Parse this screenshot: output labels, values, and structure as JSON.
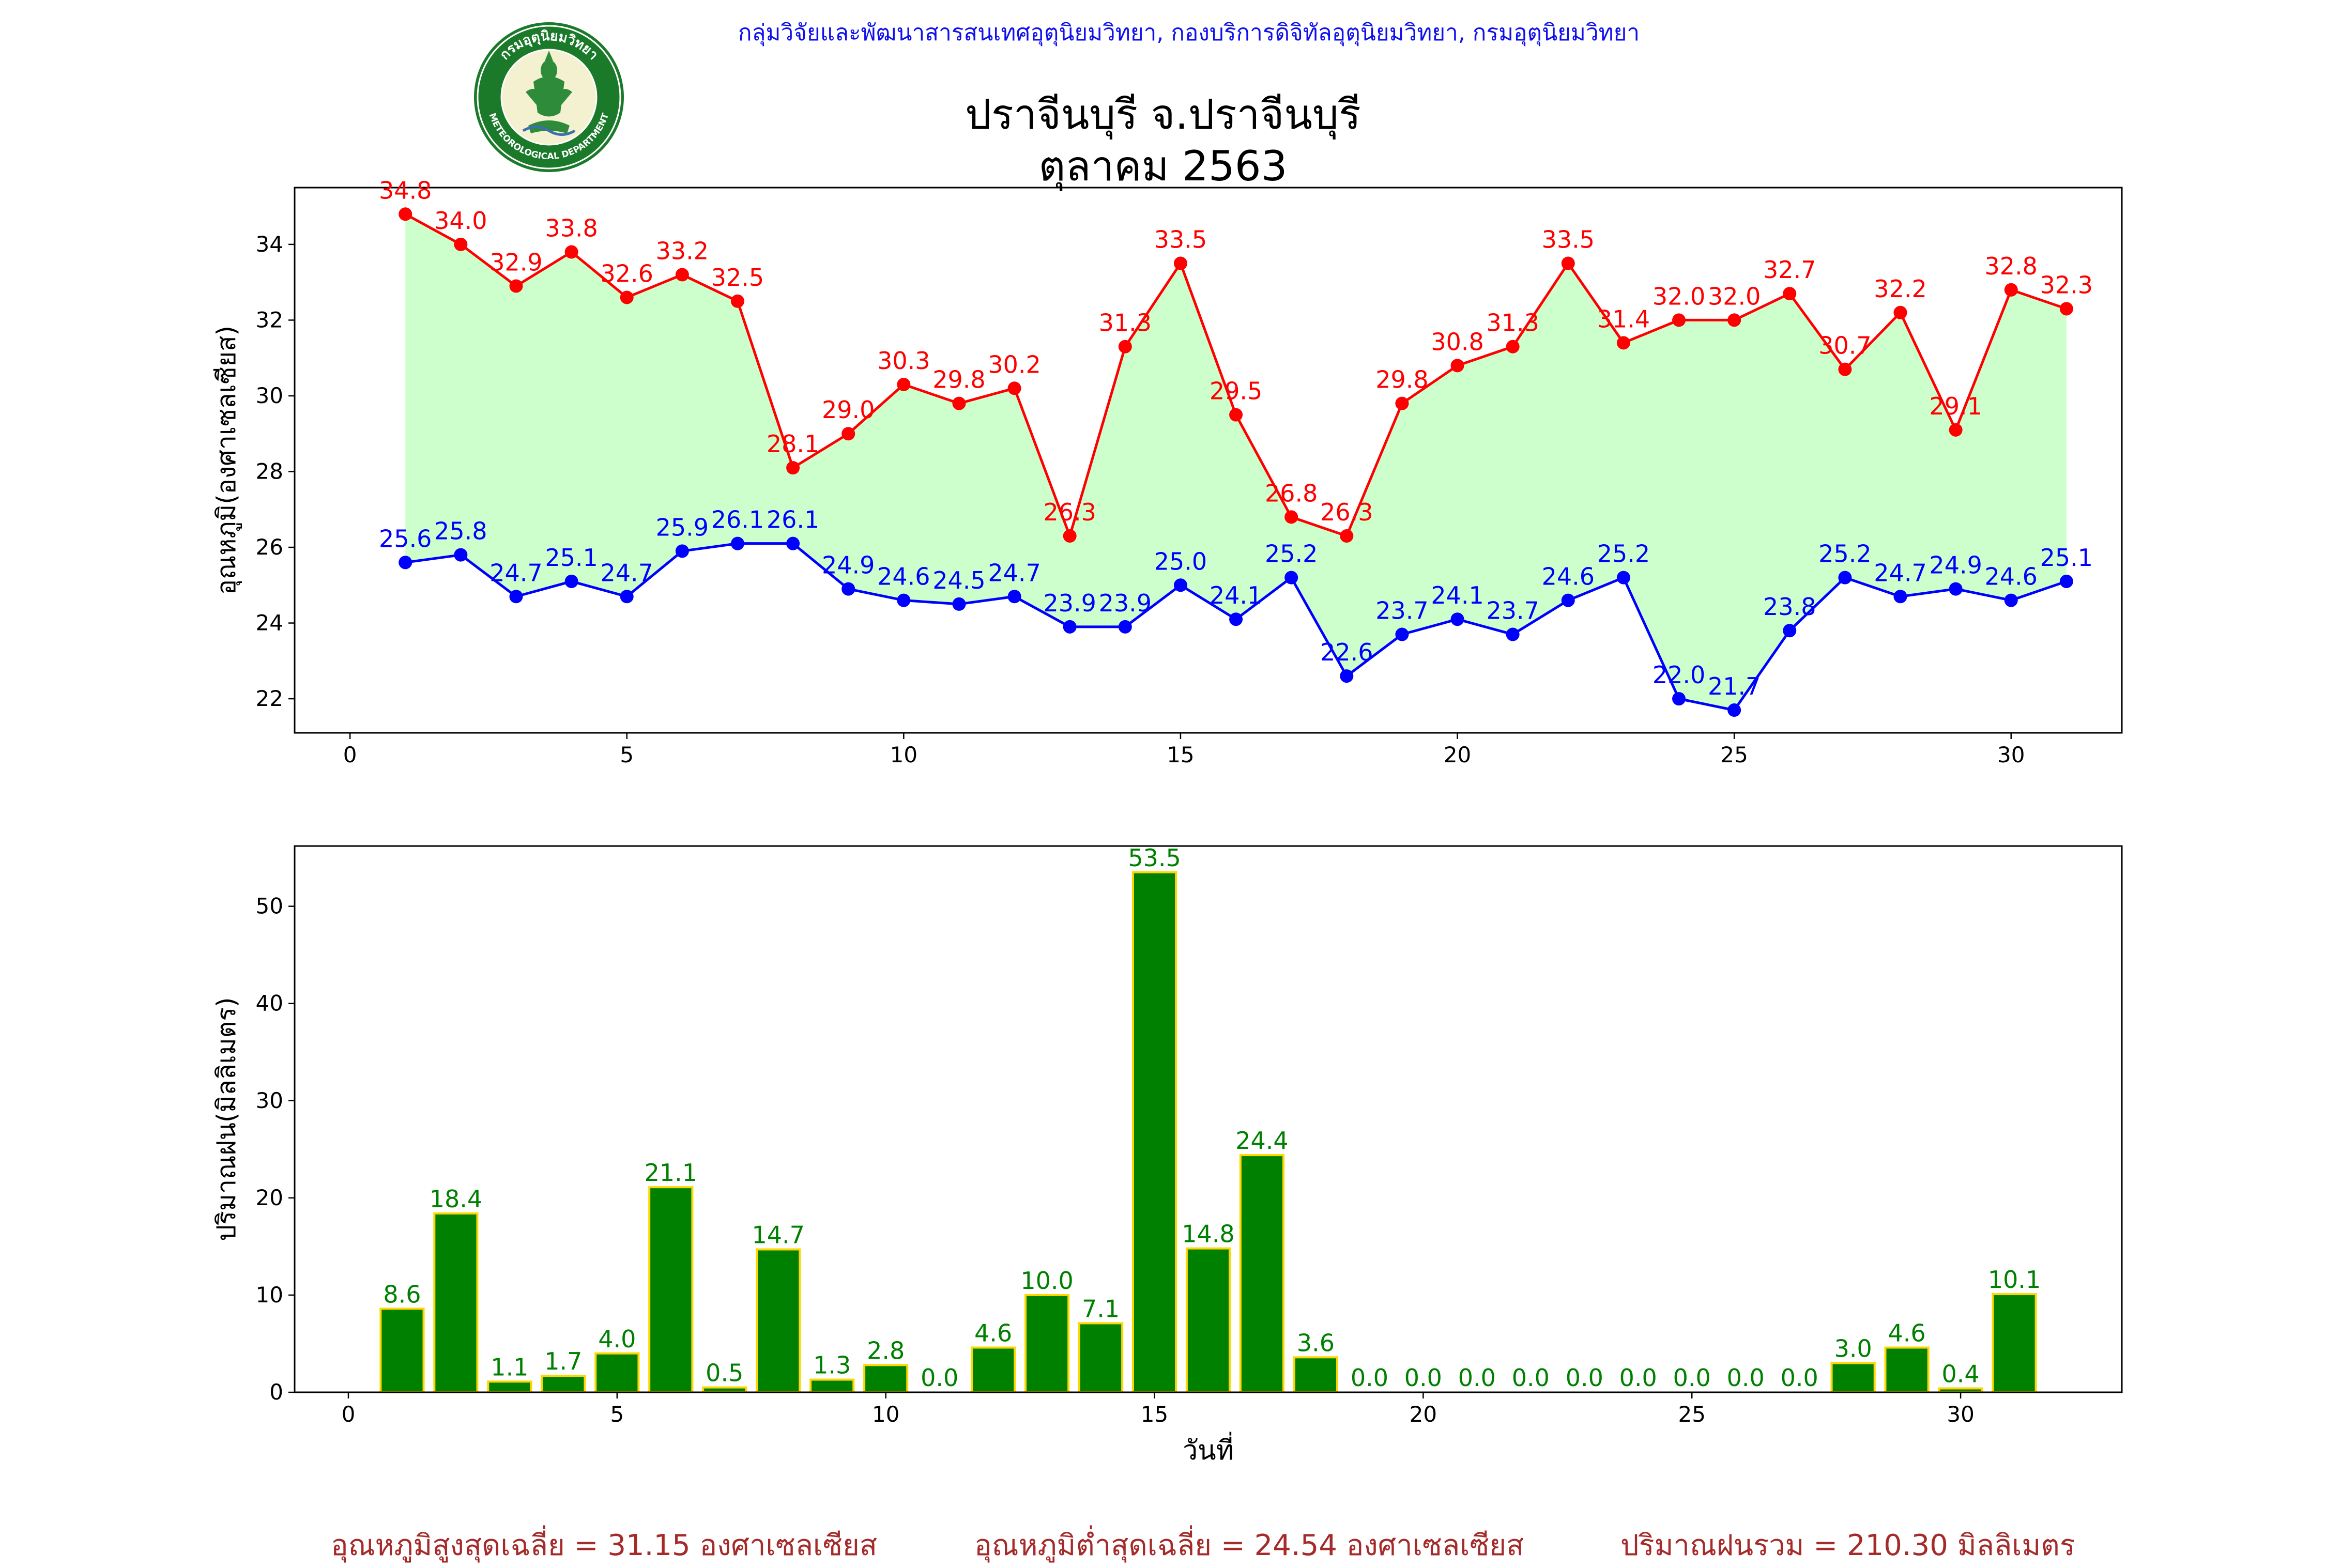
{
  "header": {
    "organization": "กลุ่มวิจัยและพัฒนาสารสนเทศอุตุนิยมวิทยา, กองบริการดิจิทัลอุตุนิยมวิทยา, กรมอุตุนิยมวิทยา",
    "station_title": "ปราจีนบุรี จ.ปราจีนบุรี",
    "month_title": "ตุลาคม 2563"
  },
  "logo": {
    "text_top": "กรมอุตุนิยมวิทยา",
    "text_bottom": "METEOROLOGICAL DEPARTMENT",
    "colors": {
      "ring": "#1a7a2a",
      "inner": "#f4f1d0",
      "figure": "#2e8b3a"
    }
  },
  "footer": {
    "avg_max": "อุณหภูมิสูงสุดเฉลี่ย = 31.15 องศาเซลเซียส",
    "avg_min": "อุณหภูมิต่ำสุดเฉลี่ย = 24.54 องศาเซลเซียส",
    "rain_total": "ปริมาณฝนรวม = 210.30 มิลลิเมตร"
  },
  "chart_data": [
    {
      "type": "line",
      "ylabel": "อุณหภูมิ(องศาเซลเซียส)",
      "xlabel": "",
      "xlim": [
        -1,
        32
      ],
      "ylim": [
        21.1,
        35.5
      ],
      "x_ticks": [
        0,
        5,
        10,
        15,
        20,
        25,
        30
      ],
      "y_ticks": [
        22,
        24,
        26,
        28,
        30,
        32,
        34
      ],
      "fill_between": {
        "color": "#ccffcc"
      },
      "x": [
        1,
        2,
        3,
        4,
        5,
        6,
        7,
        8,
        9,
        10,
        11,
        12,
        13,
        14,
        15,
        16,
        17,
        18,
        19,
        20,
        21,
        22,
        23,
        24,
        25,
        26,
        27,
        28,
        29,
        30,
        31
      ],
      "series": [
        {
          "color": "#ff0000",
          "values": [
            34.8,
            34.0,
            32.9,
            33.8,
            32.6,
            33.2,
            32.5,
            28.1,
            29.0,
            30.3,
            29.8,
            30.2,
            26.3,
            31.3,
            33.5,
            29.5,
            26.8,
            26.3,
            29.8,
            30.8,
            31.3,
            33.5,
            31.4,
            32.0,
            32.0,
            32.7,
            30.7,
            32.2,
            29.1,
            32.8,
            32.3
          ],
          "labels": [
            "34.8",
            "34.0",
            "32.9",
            "33.8",
            "32.6",
            "33.2",
            "32.5",
            "28.1",
            "29.0",
            "30.3",
            "29.8",
            "30.2",
            "26.3",
            "31.3",
            "33.5",
            "29.5",
            "26.8",
            "26.3",
            "29.8",
            "30.8",
            "31.3",
            "33.5",
            "31.4",
            "32.0",
            "32.0",
            "32.7",
            "30.7",
            "32.2",
            "29.1",
            "32.8",
            "32.3"
          ]
        },
        {
          "color": "#0000ff",
          "values": [
            25.6,
            25.8,
            24.7,
            25.1,
            24.7,
            25.9,
            26.1,
            26.1,
            24.9,
            24.6,
            24.5,
            24.7,
            23.9,
            23.9,
            25.0,
            24.1,
            25.2,
            22.6,
            23.7,
            24.1,
            23.7,
            24.6,
            25.2,
            22.0,
            21.7,
            23.8,
            25.2,
            24.7,
            24.9,
            24.6,
            25.1
          ],
          "labels": [
            "25.6",
            "25.8",
            "24.7",
            "25.1",
            "24.7",
            "25.9",
            "26.1",
            "26.1",
            "24.9",
            "24.6",
            "24.5",
            "24.7",
            "23.9",
            "23.9",
            "25.0",
            "24.1",
            "25.2",
            "22.6",
            "23.7",
            "24.1",
            "23.7",
            "24.6",
            "25.2",
            "22.0",
            "21.7",
            "23.8",
            "25.2",
            "24.7",
            "24.9",
            "24.6",
            "25.1"
          ]
        }
      ]
    },
    {
      "type": "bar",
      "ylabel": "ปริมาณฝน(มิลลิเมตร)",
      "xlabel": "วันที่",
      "xlim": [
        -1,
        33
      ],
      "ylim": [
        0,
        56.2
      ],
      "x_ticks": [
        0,
        5,
        10,
        15,
        20,
        25,
        30
      ],
      "y_ticks": [
        0,
        10,
        20,
        30,
        40,
        50
      ],
      "bar_color": "#008000",
      "edge_color": "#ffd700",
      "label_color": "#008000",
      "x": [
        1,
        2,
        3,
        4,
        5,
        6,
        7,
        8,
        9,
        10,
        11,
        12,
        13,
        14,
        15,
        16,
        17,
        18,
        19,
        20,
        21,
        22,
        23,
        24,
        25,
        26,
        27,
        28,
        29,
        30,
        31
      ],
      "values": [
        8.6,
        18.4,
        1.1,
        1.7,
        4.0,
        21.1,
        0.5,
        14.7,
        1.3,
        2.8,
        0.0,
        4.6,
        10.0,
        7.1,
        53.5,
        14.8,
        24.4,
        3.6,
        0.0,
        0.0,
        0.0,
        0.0,
        0.0,
        0.0,
        0.0,
        0.0,
        0.0,
        3.0,
        4.6,
        0.4,
        10.1
      ],
      "labels": [
        "8.6",
        "18.4",
        "1.1",
        "1.7",
        "4.0",
        "21.1",
        "0.5",
        "14.7",
        "1.3",
        "2.8",
        "0.0",
        "4.6",
        "10.0",
        "7.1",
        "53.5",
        "14.8",
        "24.4",
        "3.6",
        "0.0",
        "0.0",
        "0.0",
        "0.0",
        "0.0",
        "0.0",
        "0.0",
        "0.0",
        "0.0",
        "3.0",
        "4.6",
        "0.4",
        "10.1"
      ]
    }
  ]
}
